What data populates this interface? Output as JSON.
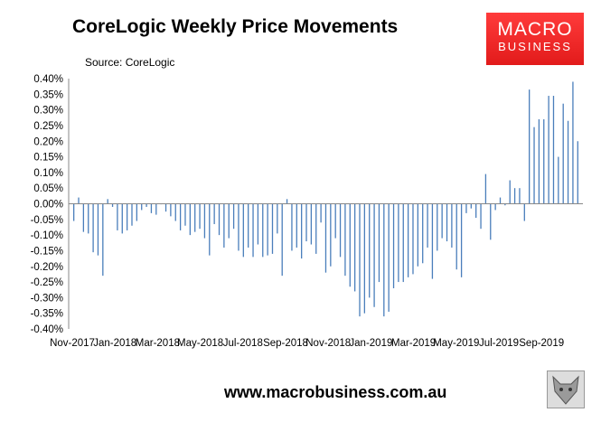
{
  "title": "CoreLogic Weekly Price Movements",
  "source": "Source: CoreLogic",
  "logo": {
    "line1": "MACRO",
    "line2": "BUSINESS",
    "color": "#e21b1b"
  },
  "website": "www.macrobusiness.com.au",
  "chart_data": {
    "type": "bar",
    "title": "CoreLogic Weekly Price Movements",
    "ylim": [
      -0.4,
      0.4
    ],
    "yticks": [
      "0.40%",
      "0.35%",
      "0.30%",
      "0.25%",
      "0.20%",
      "0.15%",
      "0.10%",
      "0.05%",
      "0.00%",
      "-0.05%",
      "-0.10%",
      "-0.15%",
      "-0.20%",
      "-0.25%",
      "-0.30%",
      "-0.35%",
      "-0.40%"
    ],
    "xticks": [
      "Nov-2017",
      "Jan-2018",
      "Mar-2018",
      "May-2018",
      "Jul-2018",
      "Sep-2018",
      "Nov-2018",
      "Jan-2019",
      "Mar-2019",
      "May-2019",
      "Jul-2019",
      "Sep-2019"
    ],
    "bar_color": "#4a7ebb",
    "grid": false,
    "values": [
      -0.055,
      0.02,
      -0.09,
      -0.095,
      -0.155,
      -0.165,
      -0.23,
      0.015,
      -0.01,
      -0.085,
      -0.095,
      -0.085,
      -0.07,
      -0.055,
      -0.02,
      -0.01,
      -0.03,
      -0.035,
      0.0,
      -0.025,
      -0.04,
      -0.055,
      -0.085,
      -0.07,
      -0.1,
      -0.09,
      -0.08,
      -0.11,
      -0.165,
      -0.065,
      -0.1,
      -0.14,
      -0.11,
      -0.08,
      -0.15,
      -0.17,
      -0.14,
      -0.17,
      -0.13,
      -0.17,
      -0.165,
      -0.16,
      -0.095,
      -0.23,
      0.015,
      -0.15,
      -0.14,
      -0.175,
      -0.12,
      -0.13,
      -0.16,
      -0.06,
      -0.22,
      -0.2,
      -0.11,
      -0.17,
      -0.23,
      -0.265,
      -0.28,
      -0.36,
      -0.35,
      -0.3,
      -0.33,
      -0.25,
      -0.36,
      -0.345,
      -0.27,
      -0.25,
      -0.25,
      -0.235,
      -0.225,
      -0.2,
      -0.19,
      -0.14,
      -0.24,
      -0.15,
      -0.11,
      -0.12,
      -0.14,
      -0.21,
      -0.235,
      -0.03,
      -0.015,
      -0.045,
      -0.08,
      0.095,
      -0.115,
      -0.02,
      0.02,
      -0.005,
      0.075,
      0.05,
      0.05,
      -0.055,
      0.365,
      0.245,
      0.27,
      0.27,
      0.345,
      0.345,
      0.15,
      0.32,
      0.265,
      0.39,
      0.2
    ]
  }
}
